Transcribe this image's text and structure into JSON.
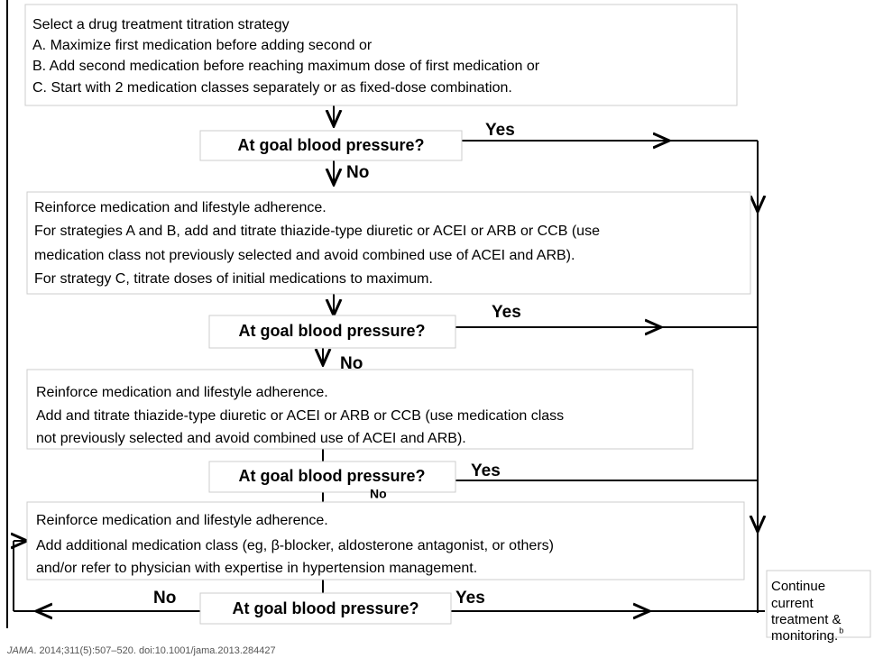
{
  "boxes": [
    {
      "lines": [
        "Select a drug treatment titration strategy",
        "A. Maximize first medication before adding second or",
        "B. Add second medication before reaching maximum dose of first medication or",
        "C. Start with 2 medication classes separately or as fixed-dose combination."
      ]
    },
    {
      "lines": [
        "Reinforce medication and lifestyle adherence.",
        "For strategies A and B, add and titrate thiazide-type diuretic or ACEI or ARB or CCB (use",
        "medication class not previously selected and avoid combined use of ACEI and ARB).",
        "For strategy C, titrate doses of initial medications to maximum."
      ]
    },
    {
      "lines": [
        "Reinforce medication and lifestyle adherence.",
        "Add and titrate thiazide-type diuretic or ACEI or ARB or CCB (use medication class",
        "not previously selected and avoid combined use of ACEI and ARB)."
      ]
    },
    {
      "lines": [
        "Reinforce medication and lifestyle adherence.",
        "Add additional medication class (eg, β-blocker, aldosterone antagonist, or others)",
        "and/or refer to physician with expertise in hypertension management."
      ]
    }
  ],
  "decisions": [
    "At goal blood pressure?",
    "At goal blood pressure?",
    "At goal blood pressure?",
    "At goal blood pressure?"
  ],
  "yes_labels": [
    "Yes",
    "Yes",
    "Yes",
    "Yes"
  ],
  "no_labels": [
    "No",
    "No",
    "No",
    "No"
  ],
  "end_box": {
    "lines": [
      "Continue",
      "current",
      "treatment &",
      "monitoring."
    ],
    "superscript": "b"
  },
  "citation": {
    "journal": "JAMA",
    "text": ". 2014;311(5):507–520. doi:10.1001/jama.2013.284427"
  }
}
